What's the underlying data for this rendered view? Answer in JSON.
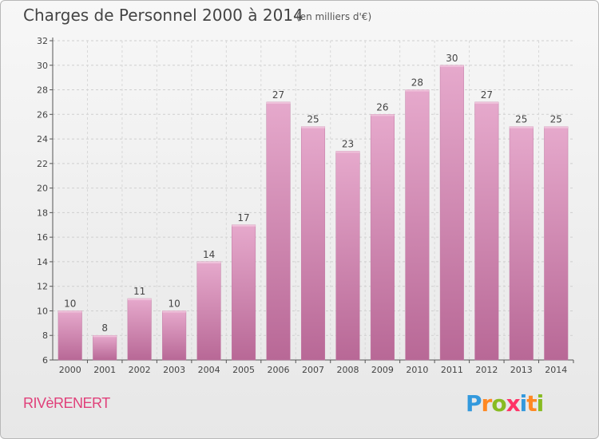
{
  "header": {
    "title": "Charges de Personnel 2000 à 2014",
    "subtitle": "(en milliers d'€)"
  },
  "footer": {
    "commune": "RIVèRENERT",
    "logo_letters": [
      {
        "char": "P",
        "color": "#3399dd"
      },
      {
        "char": "r",
        "color": "#ff8822"
      },
      {
        "char": "o",
        "color": "#88bb22"
      },
      {
        "char": "x",
        "color": "#ff3366"
      },
      {
        "char": "i",
        "color": "#3399dd"
      },
      {
        "char": "t",
        "color": "#ff8822"
      },
      {
        "char": "i",
        "color": "#88bb22"
      }
    ]
  },
  "chart_data": {
    "type": "bar",
    "categories": [
      "2000",
      "2001",
      "2002",
      "2003",
      "2004",
      "2005",
      "2006",
      "2007",
      "2008",
      "2009",
      "2010",
      "2011",
      "2012",
      "2013",
      "2014"
    ],
    "values": [
      10,
      8,
      11,
      10,
      14,
      17,
      27,
      25,
      23,
      26,
      28,
      30,
      27,
      25,
      25
    ],
    "ylim": [
      6,
      32
    ],
    "yticks": [
      6,
      8,
      10,
      12,
      14,
      16,
      18,
      20,
      22,
      24,
      26,
      28,
      30,
      32
    ],
    "grid": true,
    "bar_color": "#d98fb8",
    "bar_color_light": "#e6a9cc",
    "bar_color_dark": "#b86896"
  }
}
